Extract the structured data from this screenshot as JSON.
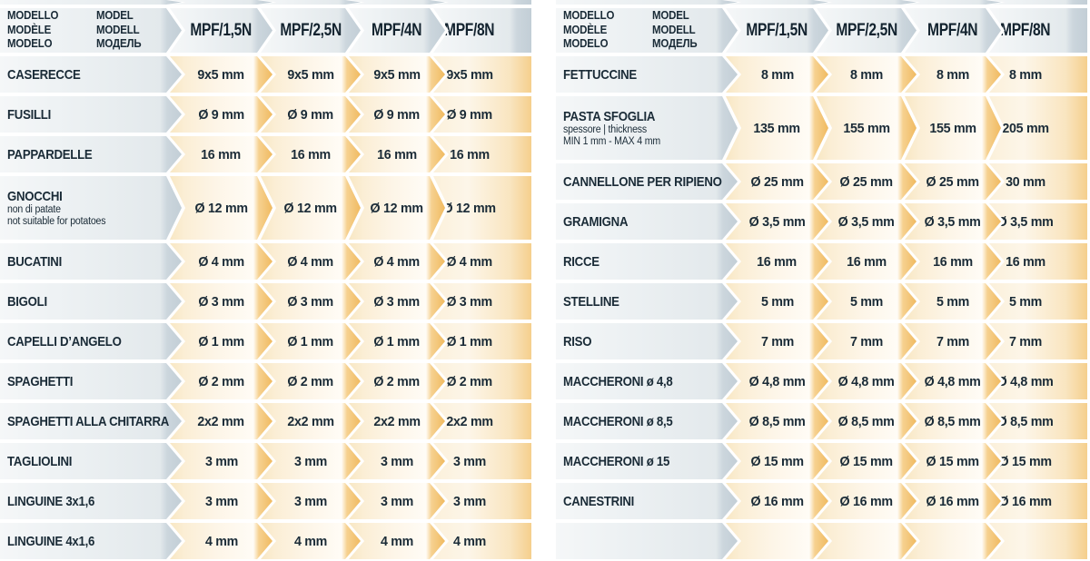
{
  "header": {
    "column1": [
      "MODELLO",
      "MODÈLE",
      "MODELO"
    ],
    "column2": [
      "MODEL",
      "MODELL",
      "МОДЕЛЬ"
    ],
    "models": [
      "MPF/1,5N",
      "MPF/2,5N",
      "MPF/4N",
      "MPF/8N"
    ]
  },
  "tables": [
    {
      "rows": [
        {
          "label": "CASERECCE",
          "values": [
            "9x5 mm",
            "9x5 mm",
            "9x5 mm",
            "9x5 mm"
          ]
        },
        {
          "label": "FUSILLI",
          "values": [
            "Ø 9 mm",
            "Ø 9 mm",
            "Ø 9 mm",
            "Ø 9 mm"
          ]
        },
        {
          "label": "PAPPARDELLE",
          "values": [
            "16 mm",
            "16 mm",
            "16 mm",
            "16 mm"
          ]
        },
        {
          "label": "GNOCCHI",
          "tall": true,
          "sublabels": [
            "non di patate",
            "not suitable for potatoes"
          ],
          "values": [
            "Ø 12 mm",
            "Ø 12 mm",
            "Ø 12 mm",
            "Ø 12 mm"
          ]
        },
        {
          "label": "BUCATINI",
          "values": [
            "Ø 4 mm",
            "Ø 4 mm",
            "Ø 4 mm",
            "Ø 4 mm"
          ]
        },
        {
          "label": "BIGOLI",
          "values": [
            "Ø 3 mm",
            "Ø 3 mm",
            "Ø 3 mm",
            "Ø 3 mm"
          ]
        },
        {
          "label": "CAPELLI D’ANGELO",
          "values": [
            "Ø 1 mm",
            "Ø 1 mm",
            "Ø 1 mm",
            "Ø 1 mm"
          ]
        },
        {
          "label": "SPAGHETTI",
          "values": [
            "Ø 2 mm",
            "Ø 2 mm",
            "Ø 2 mm",
            "Ø 2 mm"
          ]
        },
        {
          "label": "SPAGHETTI ALLA CHITARRA",
          "values": [
            "2x2 mm",
            "2x2 mm",
            "2x2 mm",
            "2x2 mm"
          ]
        },
        {
          "label": "TAGLIOLINI",
          "values": [
            "3 mm",
            "3 mm",
            "3 mm",
            "3 mm"
          ]
        },
        {
          "label": "LINGUINE 3x1,6",
          "values": [
            "3 mm",
            "3 mm",
            "3 mm",
            "3 mm"
          ]
        },
        {
          "label": "LINGUINE 4x1,6",
          "values": [
            "4 mm",
            "4 mm",
            "4 mm",
            "4 mm"
          ]
        }
      ]
    },
    {
      "rows": [
        {
          "label": "FETTUCCINE",
          "values": [
            "8 mm",
            "8 mm",
            "8 mm",
            "8 mm"
          ]
        },
        {
          "label": "PASTA SFOGLIA",
          "tall": true,
          "sublabels": [
            "spessore | thickness",
            "MIN 1 mm - MAX 4 mm"
          ],
          "values": [
            "135 mm",
            "155 mm",
            "155 mm",
            "205 mm"
          ]
        },
        {
          "label": "CANNELLONE PER RIPIENO",
          "values": [
            "Ø 25 mm",
            "Ø 25 mm",
            "Ø 25 mm",
            "30 mm"
          ]
        },
        {
          "label": "GRAMIGNA",
          "values": [
            "Ø 3,5 mm",
            "Ø 3,5 mm",
            "Ø 3,5 mm",
            "Ø 3,5 mm"
          ]
        },
        {
          "label": "RICCE",
          "values": [
            "16 mm",
            "16 mm",
            "16 mm",
            "16 mm"
          ]
        },
        {
          "label": "STELLINE",
          "values": [
            "5 mm",
            "5 mm",
            "5 mm",
            "5 mm"
          ]
        },
        {
          "label": "RISO",
          "values": [
            "7 mm",
            "7 mm",
            "7 mm",
            "7 mm"
          ]
        },
        {
          "label": "MACCHERONI ø 4,8",
          "values": [
            "Ø 4,8 mm",
            "Ø 4,8 mm",
            "Ø 4,8 mm",
            "Ø 4,8 mm"
          ]
        },
        {
          "label": "MACCHERONI ø 8,5",
          "values": [
            "Ø 8,5 mm",
            "Ø 8,5 mm",
            "Ø 8,5 mm",
            "Ø 8,5 mm"
          ]
        },
        {
          "label": "MACCHERONI ø 15",
          "values": [
            "Ø 15 mm",
            "Ø 15 mm",
            "Ø 15 mm",
            "Ø 15 mm"
          ]
        },
        {
          "label": "CANESTRINI",
          "values": [
            "Ø 16 mm",
            "Ø 16 mm",
            "Ø 16 mm",
            "Ø 16 mm"
          ]
        },
        {
          "label": "",
          "values": [
            "",
            "",
            "",
            ""
          ]
        }
      ]
    }
  ],
  "colors": {
    "text": "#1a2b37",
    "model_text": "#13232f",
    "arrow_gray_tip": "#c2ced6",
    "arrow_gray_body": "#eef2f4",
    "arrow_orange_tip": "#f0ba60",
    "arrow_orange_body": "#fdf5e7",
    "background": "#ffffff"
  }
}
